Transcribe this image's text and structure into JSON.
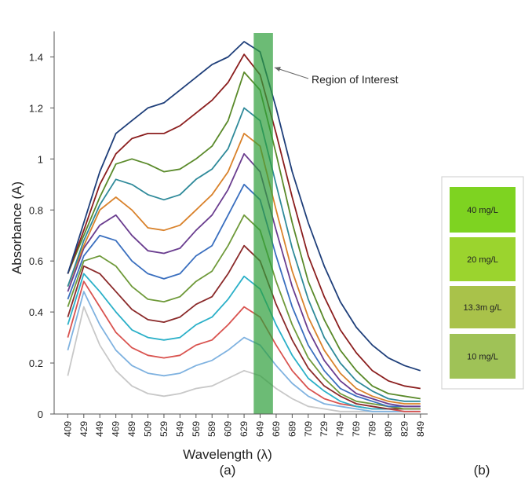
{
  "chart_data": {
    "type": "line",
    "x_label": "Wavelength (λ)",
    "y_label": "Absorbance (A)",
    "caption": "(a)",
    "annotation": "Region of Interest",
    "region": {
      "xlim": [
        641,
        665
      ],
      "color": "#2e9e3a"
    },
    "x": [
      409,
      429,
      449,
      469,
      489,
      509,
      529,
      549,
      569,
      589,
      609,
      629,
      649,
      669,
      689,
      709,
      729,
      749,
      769,
      789,
      809,
      829,
      849
    ],
    "xlim": [
      392,
      858
    ],
    "xticks": [
      409,
      429,
      449,
      469,
      489,
      509,
      529,
      549,
      569,
      589,
      609,
      629,
      649,
      669,
      689,
      709,
      729,
      749,
      769,
      789,
      809,
      829,
      849
    ],
    "ylim": [
      0,
      1.5
    ],
    "yticks": [
      0,
      0.2,
      0.4,
      0.6,
      0.8,
      1,
      1.2,
      1.4
    ],
    "grid": false,
    "series": [
      {
        "color": "#c8c8c8",
        "values": [
          0.15,
          0.42,
          0.27,
          0.17,
          0.11,
          0.08,
          0.07,
          0.08,
          0.1,
          0.11,
          0.14,
          0.17,
          0.15,
          0.1,
          0.06,
          0.03,
          0.02,
          0.01,
          0.01,
          0.01,
          0.01,
          0.01,
          0.01
        ]
      },
      {
        "color": "#7fb2e0",
        "values": [
          0.25,
          0.48,
          0.35,
          0.25,
          0.19,
          0.16,
          0.15,
          0.16,
          0.19,
          0.21,
          0.25,
          0.3,
          0.27,
          0.19,
          0.12,
          0.07,
          0.04,
          0.03,
          0.02,
          0.01,
          0.01,
          0.01,
          0.01
        ]
      },
      {
        "color": "#d9534f",
        "values": [
          0.3,
          0.52,
          0.42,
          0.32,
          0.26,
          0.23,
          0.22,
          0.23,
          0.27,
          0.29,
          0.35,
          0.42,
          0.38,
          0.27,
          0.17,
          0.1,
          0.06,
          0.04,
          0.03,
          0.02,
          0.02,
          0.01,
          0.01
        ]
      },
      {
        "color": "#2bb0c8",
        "values": [
          0.35,
          0.55,
          0.48,
          0.4,
          0.33,
          0.3,
          0.29,
          0.3,
          0.35,
          0.38,
          0.45,
          0.54,
          0.49,
          0.35,
          0.23,
          0.14,
          0.09,
          0.05,
          0.03,
          0.02,
          0.02,
          0.02,
          0.02
        ]
      },
      {
        "color": "#8b2a2a",
        "values": [
          0.38,
          0.58,
          0.55,
          0.48,
          0.41,
          0.37,
          0.36,
          0.38,
          0.43,
          0.46,
          0.55,
          0.66,
          0.6,
          0.43,
          0.29,
          0.18,
          0.11,
          0.07,
          0.04,
          0.03,
          0.02,
          0.02,
          0.02
        ]
      },
      {
        "color": "#6f9a3a",
        "values": [
          0.42,
          0.6,
          0.62,
          0.58,
          0.5,
          0.45,
          0.44,
          0.46,
          0.52,
          0.56,
          0.66,
          0.78,
          0.72,
          0.52,
          0.35,
          0.22,
          0.14,
          0.08,
          0.05,
          0.04,
          0.03,
          0.02,
          0.02
        ]
      },
      {
        "color": "#3a6fbf",
        "values": [
          0.45,
          0.62,
          0.7,
          0.68,
          0.6,
          0.55,
          0.53,
          0.55,
          0.62,
          0.66,
          0.78,
          0.9,
          0.84,
          0.62,
          0.42,
          0.27,
          0.17,
          0.1,
          0.07,
          0.05,
          0.03,
          0.03,
          0.03
        ]
      },
      {
        "color": "#6a3d8f",
        "values": [
          0.48,
          0.65,
          0.74,
          0.78,
          0.7,
          0.64,
          0.63,
          0.65,
          0.72,
          0.78,
          0.88,
          1.02,
          0.95,
          0.72,
          0.5,
          0.33,
          0.21,
          0.13,
          0.08,
          0.06,
          0.04,
          0.03,
          0.03
        ]
      },
      {
        "color": "#d9822b",
        "values": [
          0.5,
          0.66,
          0.8,
          0.85,
          0.8,
          0.73,
          0.72,
          0.74,
          0.8,
          0.86,
          0.95,
          1.1,
          1.05,
          0.8,
          0.56,
          0.38,
          0.25,
          0.16,
          0.1,
          0.07,
          0.05,
          0.04,
          0.04
        ]
      },
      {
        "color": "#2f8a9a",
        "values": [
          0.5,
          0.68,
          0.82,
          0.92,
          0.9,
          0.86,
          0.84,
          0.86,
          0.92,
          0.96,
          1.04,
          1.2,
          1.15,
          0.9,
          0.65,
          0.45,
          0.3,
          0.2,
          0.13,
          0.09,
          0.06,
          0.05,
          0.05
        ]
      },
      {
        "color": "#5a8a2a",
        "values": [
          0.55,
          0.7,
          0.85,
          0.98,
          1.0,
          0.98,
          0.95,
          0.96,
          1.0,
          1.05,
          1.15,
          1.34,
          1.27,
          1.02,
          0.75,
          0.52,
          0.37,
          0.25,
          0.17,
          0.11,
          0.08,
          0.07,
          0.06
        ]
      },
      {
        "color": "#8b1e1e",
        "values": [
          0.55,
          0.72,
          0.9,
          1.02,
          1.08,
          1.1,
          1.1,
          1.13,
          1.18,
          1.23,
          1.3,
          1.41,
          1.33,
          1.1,
          0.85,
          0.62,
          0.46,
          0.33,
          0.24,
          0.17,
          0.13,
          0.11,
          0.1
        ]
      },
      {
        "color": "#1f3f7a",
        "values": [
          0.55,
          0.75,
          0.95,
          1.1,
          1.15,
          1.2,
          1.22,
          1.27,
          1.32,
          1.37,
          1.4,
          1.46,
          1.42,
          1.2,
          0.95,
          0.75,
          0.58,
          0.44,
          0.34,
          0.27,
          0.22,
          0.19,
          0.17
        ]
      }
    ]
  },
  "panel_b": {
    "caption": "(b)",
    "samples": [
      {
        "label": "40 mg/L",
        "color": "#7ed321"
      },
      {
        "label": "20 mg/L",
        "color": "#9bd42e"
      },
      {
        "label": "13.3m g/L",
        "color": "#a9c24a"
      },
      {
        "label": "10 mg/L",
        "color": "#9fc257"
      }
    ]
  }
}
